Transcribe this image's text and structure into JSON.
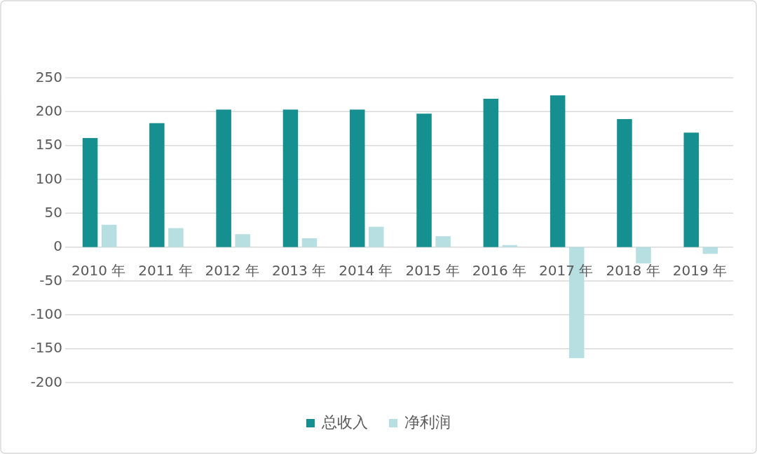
{
  "chart_data": {
    "type": "bar",
    "categories": [
      "2010 年",
      "2011 年",
      "2012 年",
      "2013 年",
      "2014 年",
      "2015 年",
      "2016 年",
      "2017 年",
      "2018 年",
      "2019 年"
    ],
    "series": [
      {
        "name": "总收入",
        "color": "#168f91",
        "values": [
          161,
          183,
          203,
          203,
          203,
          197,
          219,
          224,
          189,
          169
        ]
      },
      {
        "name": "净利润",
        "color": "#b7dfe1",
        "values": [
          33,
          28,
          19,
          13,
          30,
          16,
          3,
          -164,
          -24,
          -10
        ]
      }
    ],
    "ylim": [
      -200,
      250
    ],
    "yticks": [
      -200,
      -150,
      -100,
      -50,
      0,
      50,
      100,
      150,
      200,
      250
    ],
    "grid": "y",
    "legend": "bottom"
  }
}
